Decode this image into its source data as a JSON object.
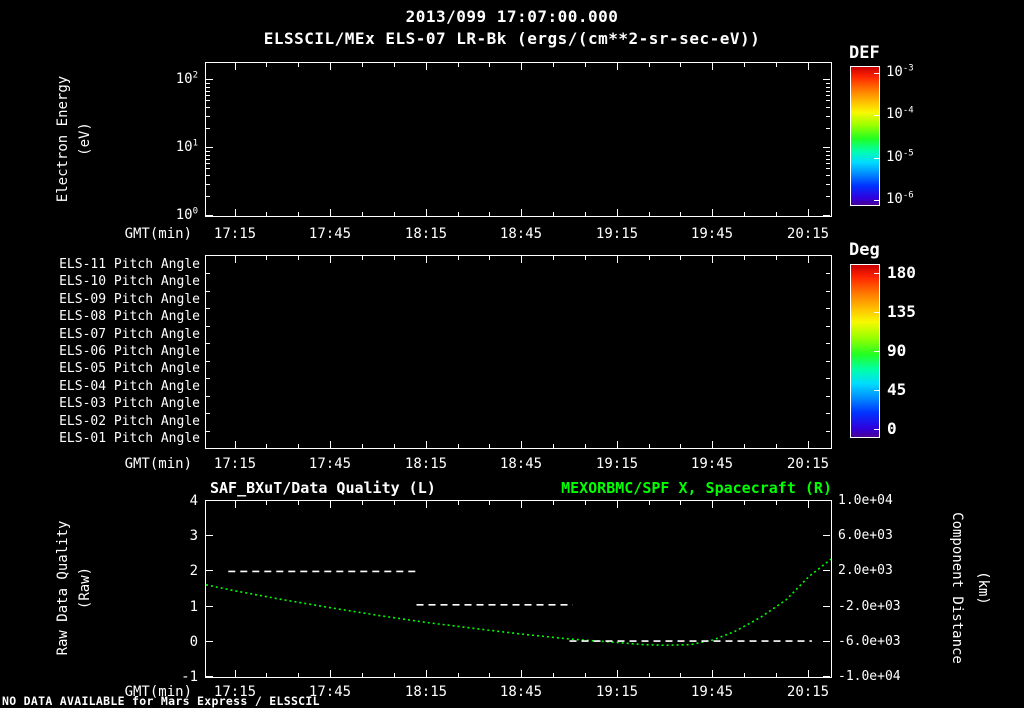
{
  "page": {
    "background": "#000000",
    "foreground": "#ffffff",
    "accent_green": "#00ff00",
    "footer_note": "NO DATA AVAILABLE for Mars Express / ELSSCIL"
  },
  "header": {
    "timestamp": "2013/099 17:07:00.000",
    "title": "ELSSCIL/MEx ELS-07 LR-Bk (ergs/(cm**2-sr-sec-eV))"
  },
  "time_axis": {
    "label": "GMT(min)",
    "ticks": [
      "17:15",
      "17:45",
      "18:15",
      "18:45",
      "19:15",
      "19:45",
      "20:15"
    ],
    "tick_minutes": [
      15,
      45,
      75,
      105,
      135,
      165,
      195
    ],
    "range_minutes": [
      6,
      202
    ],
    "minor_step_minutes": 10
  },
  "panel_spectrogram": {
    "ylabel_line1": "Electron Energy",
    "ylabel_line2": "(eV)",
    "y_ticks": [
      {
        "base": "10",
        "exp": "2"
      },
      {
        "base": "10",
        "exp": "1"
      },
      {
        "base": "10",
        "exp": "0"
      }
    ],
    "y_log_span_decades": 2.25,
    "colorbar": {
      "title": "DEF",
      "ticks": [
        {
          "base": "10",
          "exp": "-3"
        },
        {
          "base": "10",
          "exp": "-4"
        },
        {
          "base": "10",
          "exp": "-5"
        },
        {
          "base": "10",
          "exp": "-6"
        }
      ]
    }
  },
  "panel_pitch": {
    "row_labels": [
      "ELS-11 Pitch Angle",
      "ELS-10 Pitch Angle",
      "ELS-09 Pitch Angle",
      "ELS-08 Pitch Angle",
      "ELS-07 Pitch Angle",
      "ELS-06 Pitch Angle",
      "ELS-05 Pitch Angle",
      "ELS-04 Pitch Angle",
      "ELS-03 Pitch Angle",
      "ELS-02 Pitch Angle",
      "ELS-01 Pitch Angle"
    ],
    "colorbar": {
      "title": "Deg",
      "ticks": [
        "180",
        "135",
        "90",
        "45",
        "0"
      ]
    }
  },
  "panel_timeseries": {
    "title_left": "SAF_BXuT/Data Quality (L)",
    "title_right": "MEXORBMC/SPF X, Spacecraft (R)",
    "ylabel_left_line1": "Raw Data Quality",
    "ylabel_left_line2": "(Raw)",
    "ylabel_right_line1": "Component Distance",
    "ylabel_right_line2": "(km)",
    "y_left_ticks": [
      "4",
      "3",
      "2",
      "1",
      "0",
      "-1"
    ],
    "y_right_ticks": [
      "1.0e+04",
      "6.0e+03",
      "2.0e+03",
      "-2.0e+03",
      "-6.0e+03",
      "-1.0e+04"
    ]
  },
  "chart_data": [
    {
      "type": "heatmap",
      "title": "ELSSCIL/MEx ELS-07 LR-Bk (ergs/(cm**2-sr-sec-eV))",
      "ylabel": "Electron Energy (eV)",
      "yscale": "log",
      "ylim": [
        1,
        100
      ],
      "x_ticks": [
        "17:15",
        "17:45",
        "18:15",
        "18:45",
        "19:15",
        "19:45",
        "20:15"
      ],
      "colorbar_title": "DEF",
      "colorbar_ticks": [
        "1e-3",
        "1e-4",
        "1e-5",
        "1e-6"
      ],
      "values": [],
      "note": "panel rendered empty - no spectrogram data available"
    },
    {
      "type": "heatmap",
      "rows": [
        "ELS-11 Pitch Angle",
        "ELS-10 Pitch Angle",
        "ELS-09 Pitch Angle",
        "ELS-08 Pitch Angle",
        "ELS-07 Pitch Angle",
        "ELS-06 Pitch Angle",
        "ELS-05 Pitch Angle",
        "ELS-04 Pitch Angle",
        "ELS-03 Pitch Angle",
        "ELS-02 Pitch Angle",
        "ELS-01 Pitch Angle"
      ],
      "x_ticks": [
        "17:15",
        "17:45",
        "18:15",
        "18:45",
        "19:15",
        "19:45",
        "20:15"
      ],
      "colorbar_title": "Deg",
      "colorbar_ticks": [
        180,
        135,
        90,
        45,
        0
      ],
      "values": [],
      "note": "panel rendered empty - no pitch angle data available"
    },
    {
      "type": "line",
      "title_left": "SAF_BXuT/Data Quality (L)",
      "title_right": "MEXORBMC/SPF X, Spacecraft (R)",
      "xlabel": "GMT(min)",
      "x_ticks": [
        "17:15",
        "17:45",
        "18:15",
        "18:45",
        "19:15",
        "19:45",
        "20:15"
      ],
      "x_unit": "minutes after 17:00 GMT",
      "ylabel_left": "Raw Data Quality (Raw)",
      "ylabel_right": "Component Distance (km)",
      "ylim_left": [
        -1,
        4
      ],
      "ylim_right": [
        -10000,
        10000
      ],
      "series": [
        {
          "name": "MEXORBMC/SPF X Spacecraft (right axis, km)",
          "color": "#00ff00",
          "style": "dotted",
          "x": [
            6,
            15,
            30,
            45,
            60,
            75,
            90,
            105,
            120,
            135,
            143,
            150,
            158,
            165,
            172,
            180,
            188,
            195,
            202
          ],
          "y_left_equiv": [
            1.62,
            1.45,
            1.2,
            0.97,
            0.75,
            0.55,
            0.38,
            0.22,
            0.08,
            -0.02,
            -0.08,
            -0.1,
            -0.08,
            0.05,
            0.3,
            0.7,
            1.2,
            1.85,
            2.35
          ],
          "y_km": [
            480,
            -200,
            -1200,
            -2120,
            -3000,
            -3800,
            -4480,
            -5120,
            -5680,
            -6080,
            -6320,
            -6400,
            -6320,
            -5800,
            -4800,
            -3200,
            -1200,
            1400,
            3400
          ]
        },
        {
          "name": "SAF_BXuT Data Quality segment 1 (left axis)",
          "color": "#ffffff",
          "style": "dashed",
          "quality": 2,
          "x_start": 13,
          "x_end": 72
        },
        {
          "name": "SAF_BXuT Data Quality segment 2 (left axis)",
          "color": "#ffffff",
          "style": "dashed",
          "quality": 1.05,
          "x_start": 72,
          "x_end": 121
        },
        {
          "name": "SAF_BXuT Data Quality segment 3 (left axis)",
          "color": "#ffffff",
          "style": "dashed",
          "quality": 0.02,
          "x_start": 120,
          "x_end": 196
        }
      ]
    }
  ]
}
